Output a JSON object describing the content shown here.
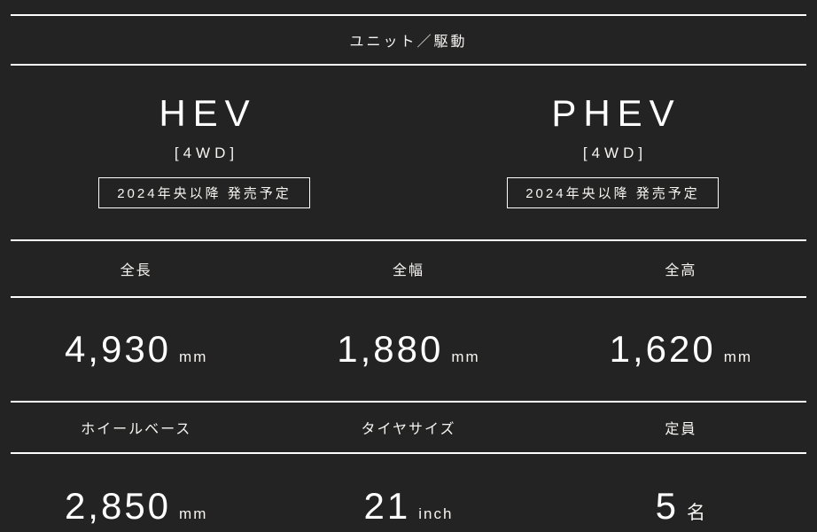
{
  "colors": {
    "background": "#232323",
    "rule_line": "#fdfdfd",
    "text": "#ffffff"
  },
  "header": {
    "title": "ユニット／駆動"
  },
  "models": [
    {
      "name": "HEV",
      "drivetrain": "[4WD]",
      "release": "2024年央以降 発売予定"
    },
    {
      "name": "PHEV",
      "drivetrain": "[4WD]",
      "release": "2024年央以降 発売予定"
    }
  ],
  "spec_rows": [
    {
      "labels": [
        "全長",
        "全幅",
        "全高"
      ],
      "values": [
        {
          "number": "4,930",
          "unit": "mm"
        },
        {
          "number": "1,880",
          "unit": "mm"
        },
        {
          "number": "1,620",
          "unit": "mm"
        }
      ]
    },
    {
      "labels": [
        "ホイールベース",
        "タイヤサイズ",
        "定員"
      ],
      "values": [
        {
          "number": "2,850",
          "unit": "mm"
        },
        {
          "number": "21",
          "unit": "inch"
        },
        {
          "number": "5",
          "unit": "名"
        }
      ]
    }
  ]
}
